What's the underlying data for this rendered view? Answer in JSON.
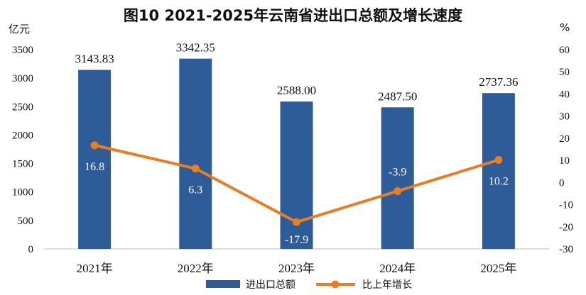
{
  "chart_data": {
    "type": "bar",
    "title": "图10  2021-2025年云南省进出口总额及增长速度",
    "y_left_unit": "亿元",
    "y_right_unit": "%",
    "categories": [
      "2021年",
      "2022年",
      "2023年",
      "2024年",
      "2025年"
    ],
    "ylim_left": [
      0,
      3500
    ],
    "yticks_left": [
      "0",
      "500",
      "1000",
      "1500",
      "2000",
      "2500",
      "3000",
      "3500"
    ],
    "ylim_right": [
      -30,
      60
    ],
    "yticks_right": [
      "-30",
      "-20",
      "-10",
      "0",
      "10",
      "20",
      "30",
      "40",
      "50",
      "60"
    ],
    "grid": false,
    "legend_position": "bottom",
    "series": [
      {
        "name": "进出口总额",
        "type": "bar",
        "axis": "left",
        "color": "#2e5c98",
        "values": [
          3143.83,
          3342.35,
          2588.0,
          2487.5,
          2737.36
        ],
        "labels": [
          "3143.83",
          "3342.35",
          "2588.00",
          "2487.50",
          "2737.36"
        ]
      },
      {
        "name": "比上年增长",
        "type": "line",
        "axis": "right",
        "color": "#e87d22",
        "values": [
          16.8,
          6.3,
          -17.9,
          -3.9,
          10.2
        ],
        "labels": [
          "16.8",
          "6.3",
          "-17.9",
          "-3.9",
          "10.2"
        ]
      }
    ]
  }
}
